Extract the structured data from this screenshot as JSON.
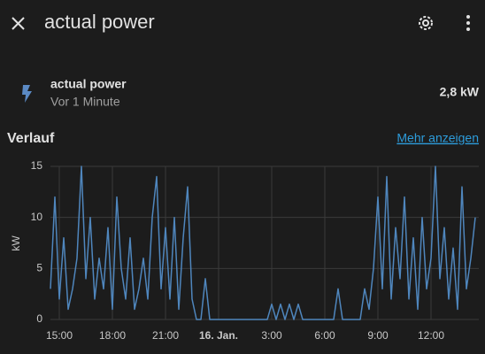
{
  "header": {
    "title": "actual power"
  },
  "entity": {
    "name": "actual power",
    "time": "Vor 1 Minute",
    "state": "2,8 kW"
  },
  "history": {
    "title": "Verlauf",
    "link": "Mehr anzeigen"
  },
  "chart_data": {
    "type": "line",
    "ylabel": "kW",
    "color": "#4f86bd",
    "grid": true,
    "x": [
      14.5,
      14.75,
      15,
      15.25,
      15.5,
      15.75,
      16,
      16.25,
      16.5,
      16.75,
      17,
      17.25,
      17.5,
      17.75,
      18,
      18.25,
      18.5,
      18.75,
      19,
      19.25,
      19.5,
      19.75,
      20,
      20.25,
      20.5,
      20.75,
      21,
      21.25,
      21.5,
      21.75,
      22,
      22.25,
      22.5,
      22.75,
      23,
      23.25,
      23.5,
      23.75,
      24,
      24.25,
      24.5,
      24.75,
      25,
      25.25,
      25.5,
      25.75,
      26,
      26.25,
      26.5,
      26.75,
      27,
      27.25,
      27.5,
      27.75,
      28,
      28.25,
      28.5,
      28.75,
      29,
      29.25,
      29.5,
      29.75,
      30,
      30.25,
      30.5,
      30.75,
      31,
      31.25,
      31.5,
      31.75,
      32,
      32.25,
      32.5,
      32.75,
      33,
      33.25,
      33.5,
      33.75,
      34,
      34.25,
      34.5,
      34.75,
      35,
      35.25,
      35.5,
      35.75,
      36,
      36.25,
      36.5,
      36.75,
      37,
      37.25,
      37.5,
      37.75,
      38,
      38.25,
      38.5
    ],
    "values": [
      3,
      12,
      2,
      8,
      1,
      3,
      6,
      15,
      4,
      10,
      2,
      6,
      3,
      9,
      1,
      12,
      5,
      2,
      8,
      1,
      3,
      6,
      2,
      10,
      14,
      3,
      9,
      2,
      10,
      1,
      8,
      13,
      2,
      0,
      0,
      4,
      0,
      0,
      0,
      0,
      0,
      0,
      0,
      0,
      0,
      0,
      0,
      0,
      0,
      0,
      1.5,
      0,
      1.5,
      0,
      1.5,
      0,
      1.5,
      0,
      0,
      0,
      0,
      0,
      0,
      0,
      0,
      3,
      0,
      0,
      0,
      0,
      0,
      3,
      1,
      5,
      12,
      3,
      14,
      2,
      9,
      4,
      12,
      2,
      8,
      1,
      10,
      3,
      6,
      15,
      4,
      9,
      2,
      7,
      1,
      13,
      3,
      6,
      10
    ],
    "xlim": [
      14.5,
      38.7
    ],
    "xticks": [
      {
        "value": 15,
        "label": "15:00"
      },
      {
        "value": 18,
        "label": "18:00"
      },
      {
        "value": 21,
        "label": "21:00"
      },
      {
        "value": 24,
        "label": "16. Jan."
      },
      {
        "value": 27,
        "label": "3:00"
      },
      {
        "value": 30,
        "label": "6:00"
      },
      {
        "value": 33,
        "label": "9:00"
      },
      {
        "value": 36,
        "label": "12:00"
      }
    ],
    "ylim": [
      0,
      15
    ],
    "yticks": [
      0,
      5,
      10,
      15
    ]
  }
}
